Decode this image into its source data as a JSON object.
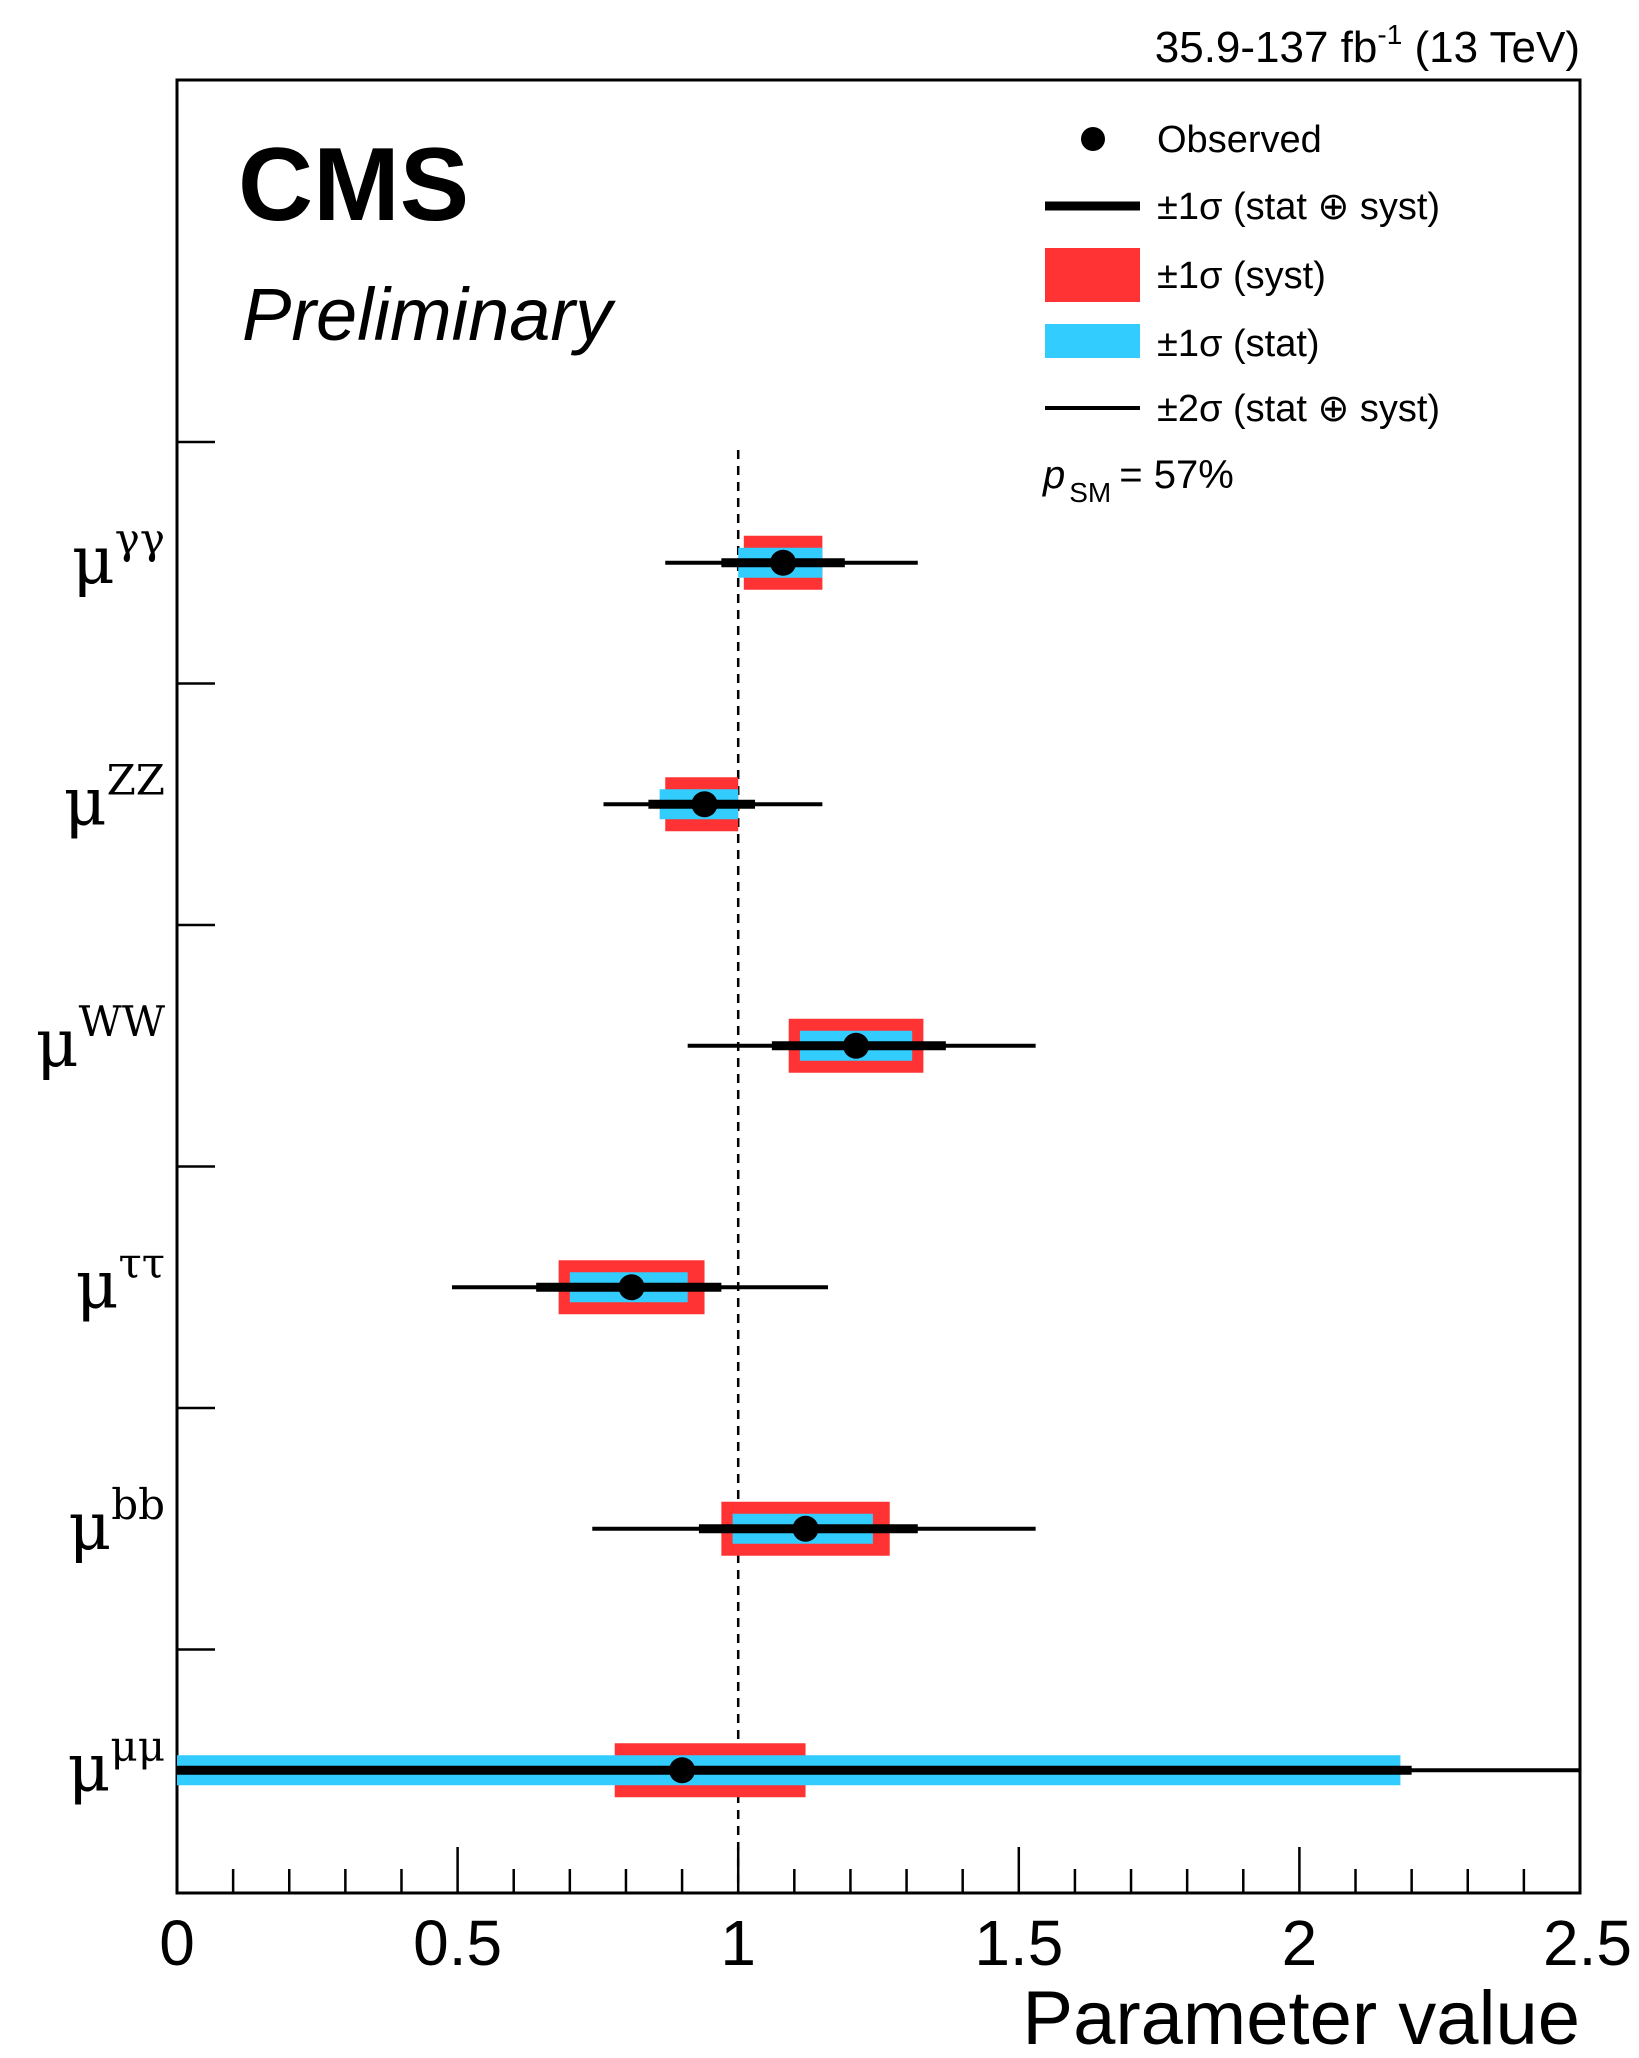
{
  "header": {
    "lumi_text": "35.9-137 fb",
    "lumi_sup": "-1",
    "lumi_tail": " (13 TeV)"
  },
  "branding": {
    "experiment": "CMS",
    "status": "Preliminary"
  },
  "legend": {
    "entries": [
      {
        "key": "observed",
        "label": "Observed"
      },
      {
        "key": "tot1",
        "label": "±1σ (stat ⊕ syst)"
      },
      {
        "key": "syst1",
        "label": "±1σ (syst)"
      },
      {
        "key": "stat1",
        "label": "±1σ (stat)"
      },
      {
        "key": "tot2",
        "label": "±2σ (stat ⊕ syst)"
      }
    ],
    "psm_p": "p",
    "psm_sub": "SM",
    "psm_value": "= 57%"
  },
  "colors": {
    "syst": "#ff3333",
    "stat": "#33ccff",
    "point": "#000000"
  },
  "chart_data": {
    "type": "scatter",
    "orientation": "horizontal",
    "xlabel": "Parameter value",
    "xlim": [
      0,
      2.5
    ],
    "xticks": [
      0,
      0.5,
      1,
      1.5,
      2,
      2.5
    ],
    "xtick_labels": [
      "0",
      "0.5",
      "1",
      "1.5",
      "2",
      "2.5"
    ],
    "reference_line": 1,
    "parameters": [
      {
        "base": "μ",
        "sup": "γγ",
        "value": 1.08,
        "tot1": [
          0.97,
          1.19
        ],
        "syst1": [
          1.01,
          1.15
        ],
        "stat1": [
          1.0,
          1.15
        ],
        "tot2": [
          0.87,
          1.32
        ]
      },
      {
        "base": "μ",
        "sup": "ZZ",
        "value": 0.94,
        "tot1": [
          0.84,
          1.03
        ],
        "syst1": [
          0.87,
          1.0
        ],
        "stat1": [
          0.86,
          1.0
        ],
        "tot2": [
          0.76,
          1.15
        ]
      },
      {
        "base": "μ",
        "sup": "WW",
        "value": 1.21,
        "tot1": [
          1.06,
          1.37
        ],
        "syst1": [
          1.09,
          1.33
        ],
        "stat1": [
          1.11,
          1.31
        ],
        "tot2": [
          0.91,
          1.53
        ]
      },
      {
        "base": "μ",
        "sup": "ττ",
        "value": 0.81,
        "tot1": [
          0.64,
          0.97
        ],
        "syst1": [
          0.68,
          0.94
        ],
        "stat1": [
          0.7,
          0.91
        ],
        "tot2": [
          0.49,
          1.16
        ]
      },
      {
        "base": "μ",
        "sup": "bb",
        "value": 1.12,
        "tot1": [
          0.93,
          1.32
        ],
        "syst1": [
          0.97,
          1.27
        ],
        "stat1": [
          0.99,
          1.24
        ],
        "tot2": [
          0.74,
          1.53
        ]
      },
      {
        "base": "μ",
        "sup": "μμ",
        "value": 0.9,
        "tot1": [
          0.0,
          2.2
        ],
        "syst1": [
          0.78,
          1.12
        ],
        "stat1": [
          0.0,
          2.18
        ],
        "tot2": [
          0.0,
          2.5
        ]
      }
    ]
  }
}
